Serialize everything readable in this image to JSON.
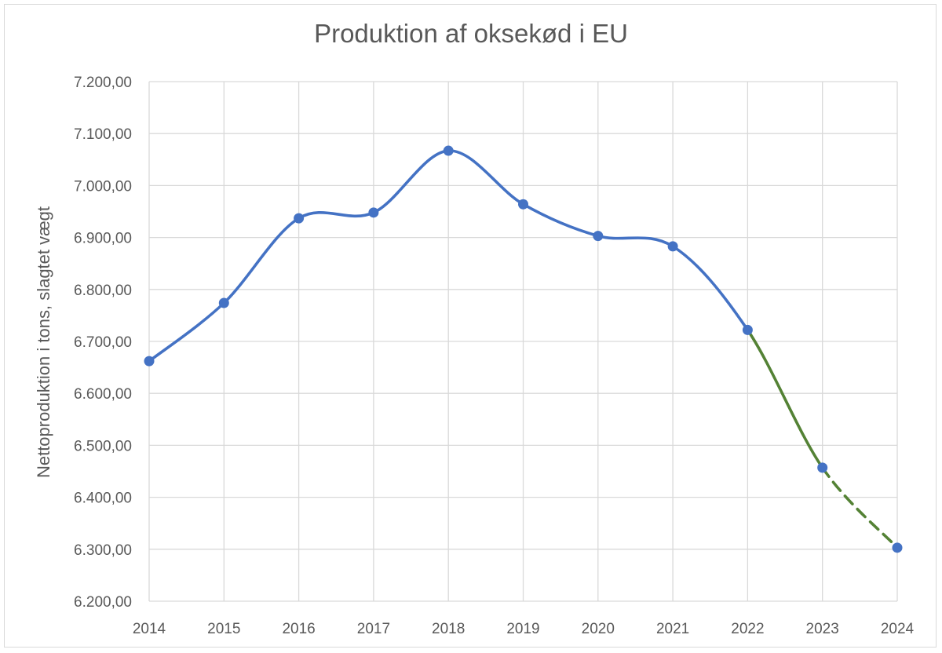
{
  "chart_data": {
    "type": "line",
    "title": "Produktion af oksekød i EU",
    "ylabel": "Nettoproduktion i tons, slagtet vægt",
    "xlabel": "",
    "x": [
      "2014",
      "2015",
      "2016",
      "2017",
      "2018",
      "2019",
      "2020",
      "2021",
      "2022",
      "2023",
      "2024"
    ],
    "ylim": [
      6200,
      7200
    ],
    "yticks": [
      6200,
      6300,
      6400,
      6500,
      6600,
      6700,
      6800,
      6900,
      7000,
      7100,
      7200
    ],
    "ytick_labels": [
      "6.200,00",
      "6.300,00",
      "6.400,00",
      "6.500,00",
      "6.600,00",
      "6.700,00",
      "6.800,00",
      "6.900,00",
      "7.000,00",
      "7.100,00",
      "7.200,00"
    ],
    "grid": true,
    "legend": "none",
    "series": [
      {
        "values": [
          6662,
          6774,
          6937,
          6948,
          7067,
          6964,
          6903,
          6883,
          6722,
          6457,
          6303
        ],
        "segments": [
          {
            "from": "2014",
            "to": "2022",
            "color": "#4472c4",
            "style": "solid"
          },
          {
            "from": "2022",
            "to": "2023",
            "color": "#548235",
            "style": "solid"
          },
          {
            "from": "2023",
            "to": "2024",
            "color": "#548235",
            "style": "dashed"
          }
        ],
        "marker_color": "#4472c4"
      }
    ]
  }
}
